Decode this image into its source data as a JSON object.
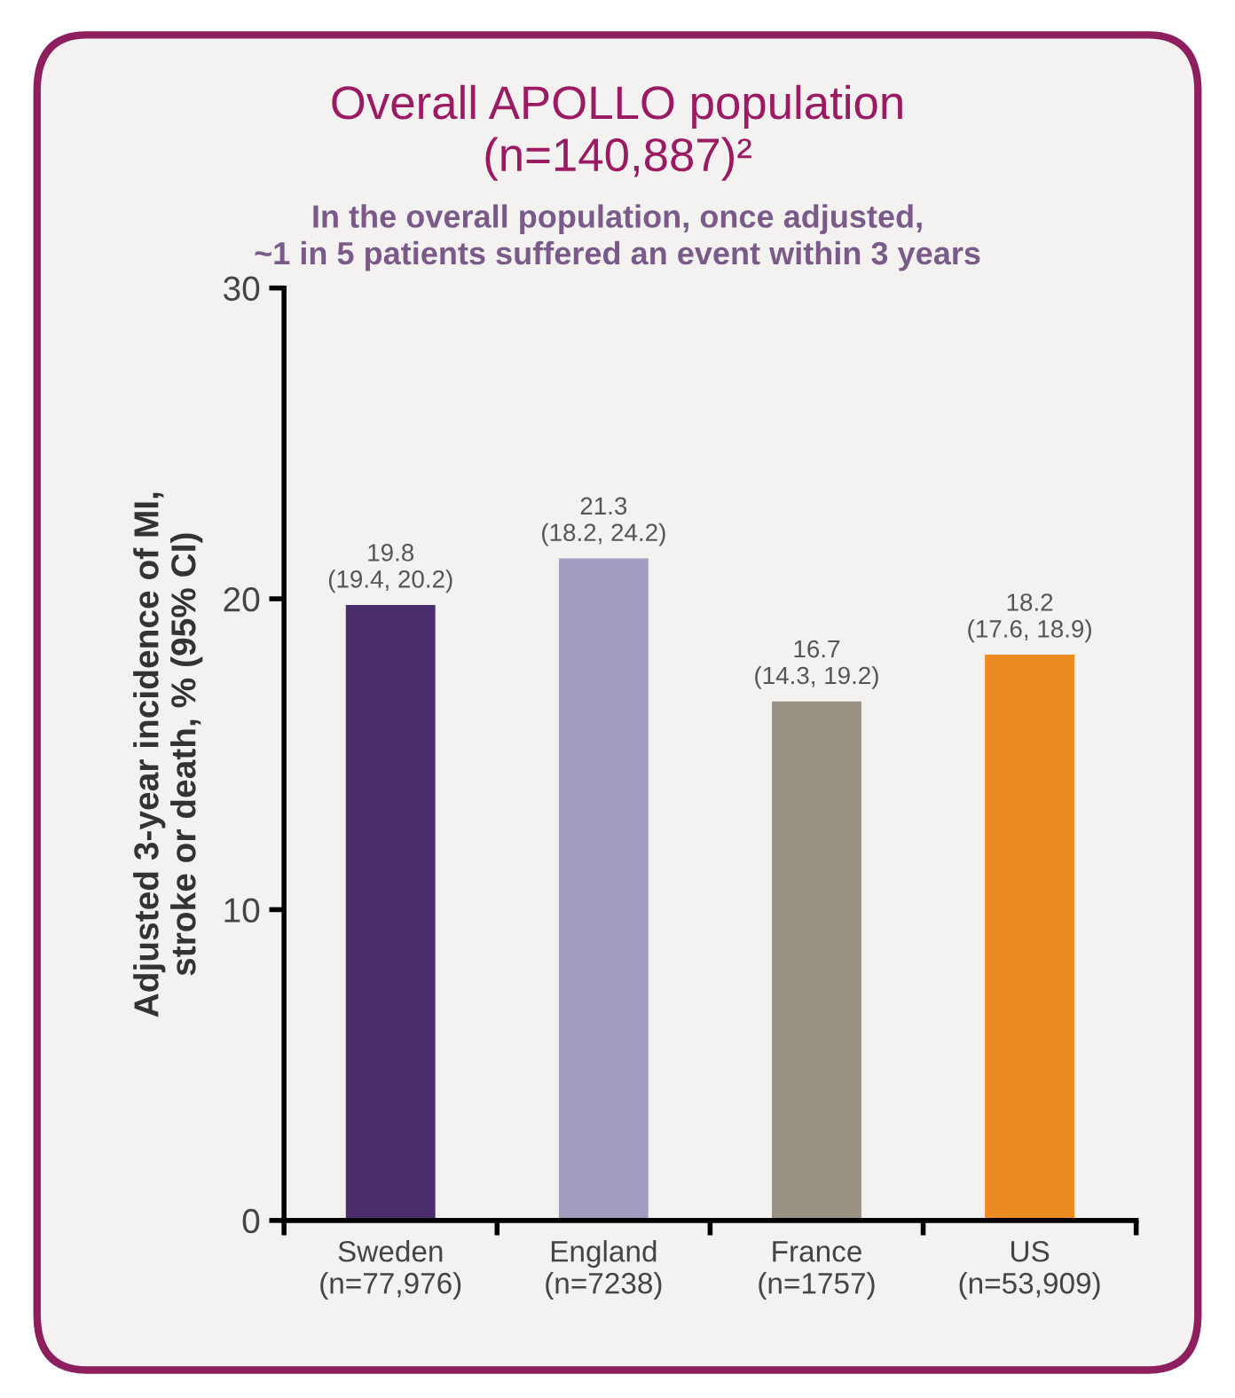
{
  "chart_data": {
    "type": "bar",
    "title": "Overall APOLLO population\n(n=140,887)²",
    "subtitle": "In the overall population, once adjusted,\n~1 in 5 patients suffered an event within 3 years",
    "ylabel": "Adjusted 3-year incidence of MI,\nstroke or death, % (95% CI)",
    "categories": [
      "Sweden\n(n=77,976)",
      "England\n(n=7238)",
      "France\n(n=1757)",
      "US\n(n=53,909)"
    ],
    "values": [
      19.8,
      21.3,
      16.7,
      18.2
    ],
    "colors": [
      "#4b2d6b",
      "#a09dc0",
      "#9a9282",
      "#ee8a22"
    ],
    "value_labels": [
      "19.8\n(19.4, 20.2)",
      "21.3\n(18.2, 24.2)",
      "16.7\n(14.3, 19.2)",
      "18.2\n(17.6, 18.9)"
    ],
    "ylim": [
      0,
      30
    ],
    "yticks": [
      0,
      10,
      20,
      30
    ],
    "grid": false
  }
}
